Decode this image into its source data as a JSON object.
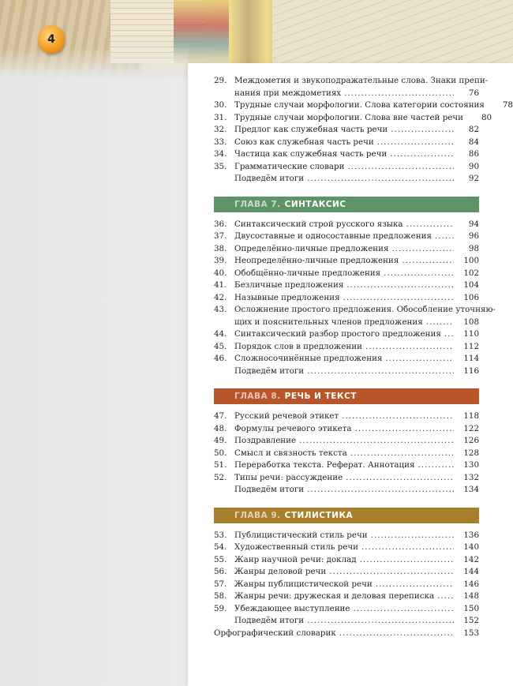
{
  "page_number": "4",
  "colors": {
    "chapter7": "#5e9468",
    "chapter8": "#b8562b",
    "chapter9": "#a8802b",
    "badge": "#f29a1e"
  },
  "blocks": [
    {
      "type": "entries",
      "entries": [
        {
          "num": "29.",
          "title": "Междометия и звукоподражательные слова. Знаки препи-",
          "title2": "нания при междометиях",
          "page": "76"
        },
        {
          "num": "30.",
          "title": "Трудные случаи морфологии. Слова категории состояния",
          "page": "78"
        },
        {
          "num": "31.",
          "title": "Трудные случаи морфологии. Слова вне частей речи",
          "page": "80"
        },
        {
          "num": "32.",
          "title": "Предлог как служебная часть речи",
          "page": "82"
        },
        {
          "num": "33.",
          "title": "Союз как служебная часть речи",
          "page": "84"
        },
        {
          "num": "34.",
          "title": "Частица как служебная часть речи",
          "page": "86"
        },
        {
          "num": "35.",
          "title": "Грамматические словари",
          "page": "90"
        },
        {
          "num": "",
          "title": "Подведём итоги",
          "page": "92"
        }
      ]
    },
    {
      "type": "chapter",
      "label": "ГЛАВА 7.",
      "name": "СИНТАКСИС",
      "color": "#5e9468"
    },
    {
      "type": "entries",
      "entries": [
        {
          "num": "36.",
          "title": "Синтаксический строй русского языка",
          "page": "94"
        },
        {
          "num": "37.",
          "title": "Двусоставные и односоставные предложения",
          "page": "96"
        },
        {
          "num": "38.",
          "title": "Определённо-личные предложения",
          "page": "98"
        },
        {
          "num": "39.",
          "title": "Неопределённо-личные предложения",
          "page": "100"
        },
        {
          "num": "40.",
          "title": "Обобщённо-личные предложения",
          "page": "102"
        },
        {
          "num": "41.",
          "title": "Безличные предложения",
          "page": "104"
        },
        {
          "num": "42.",
          "title": "Назывные предложения",
          "page": "106"
        },
        {
          "num": "43.",
          "title": "Осложнение простого предложения. Обособление уточняю-",
          "title2": "щих и пояснительных членов предложения",
          "page": "108"
        },
        {
          "num": "44.",
          "title": "Синтаксический разбор простого предложения",
          "page": "110"
        },
        {
          "num": "45.",
          "title": "Порядок слов в предложении",
          "page": "112"
        },
        {
          "num": "46.",
          "title": "Сложносочинённые предложения",
          "page": "114"
        },
        {
          "num": "",
          "title": "Подведём итоги",
          "page": "116"
        }
      ]
    },
    {
      "type": "chapter",
      "label": "ГЛАВА 8.",
      "name": "РЕЧЬ И ТЕКСТ",
      "color": "#b8562b"
    },
    {
      "type": "entries",
      "entries": [
        {
          "num": "47.",
          "title": "Русский речевой этикет",
          "page": "118"
        },
        {
          "num": "48.",
          "title": "Формулы речевого этикета",
          "page": "122"
        },
        {
          "num": "49.",
          "title": "Поздравление",
          "page": "126"
        },
        {
          "num": "50.",
          "title": "Смысл и связность текста",
          "page": "128"
        },
        {
          "num": "51.",
          "title": "Переработка текста. Реферат. Аннотация",
          "page": "130"
        },
        {
          "num": "52.",
          "title": "Типы речи: рассуждение",
          "page": "132"
        },
        {
          "num": "",
          "title": "Подведём итоги",
          "page": "134"
        }
      ]
    },
    {
      "type": "chapter",
      "label": "ГЛАВА 9.",
      "name": "СТИЛИСТИКА",
      "color": "#a8802b"
    },
    {
      "type": "entries",
      "entries": [
        {
          "num": "53.",
          "title": "Публицистический стиль речи",
          "page": "136"
        },
        {
          "num": "54.",
          "title": "Художественный стиль речи",
          "page": "140"
        },
        {
          "num": "55.",
          "title": "Жанр научной речи: доклад",
          "page": "142"
        },
        {
          "num": "56.",
          "title": "Жанры деловой речи",
          "page": "144"
        },
        {
          "num": "57.",
          "title": "Жанры публицистической речи",
          "page": "146"
        },
        {
          "num": "58.",
          "title": "Жанры речи: дружеская и деловая переписка",
          "page": "148"
        },
        {
          "num": "59.",
          "title": "Убеждающее выступление",
          "page": "150"
        },
        {
          "num": "",
          "title": "Подведём итоги",
          "page": "152"
        },
        {
          "num": "",
          "title": "Орфографический словарик",
          "page": "153",
          "flush": true
        }
      ]
    }
  ]
}
